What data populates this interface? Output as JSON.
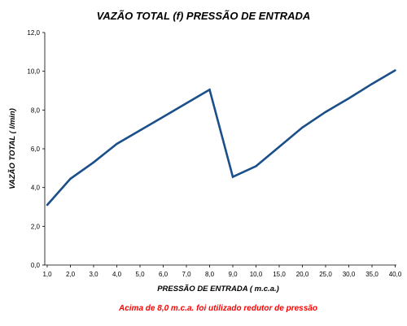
{
  "chart_data": {
    "type": "line",
    "title": "VAZÃO TOTAL (f) PRESSÃO DE ENTRADA",
    "xlabel": "PRESSÃO DE ENTRADA ( m.c.a.)",
    "ylabel": "VAZÃO TOTAL ( l/min)",
    "categories": [
      "1,0",
      "2,0",
      "3,0",
      "4,0",
      "5,0",
      "6,0",
      "7,0",
      "8,0",
      "9,0",
      "10,0",
      "15,0",
      "20,0",
      "25,0",
      "30,0",
      "35,0",
      "40,0"
    ],
    "series": [
      {
        "values": [
          3.1,
          4.45,
          5.3,
          6.25,
          6.95,
          7.65,
          8.35,
          9.05,
          4.55,
          5.1,
          6.1,
          7.1,
          7.9,
          8.6,
          9.35,
          10.05
        ]
      }
    ],
    "ylim": [
      0,
      12
    ],
    "yticks": [
      "0,0",
      "2,0",
      "4,0",
      "6,0",
      "8,0",
      "10,0",
      "12,0"
    ],
    "ytick_values": [
      0,
      2,
      4,
      6,
      8,
      10,
      12
    ],
    "grid": false,
    "line_color": "#1a4f8a",
    "note": "Acima de 8,0 m.c.a. foi utilizado redutor de pressão",
    "note_color": "#ff0000"
  }
}
